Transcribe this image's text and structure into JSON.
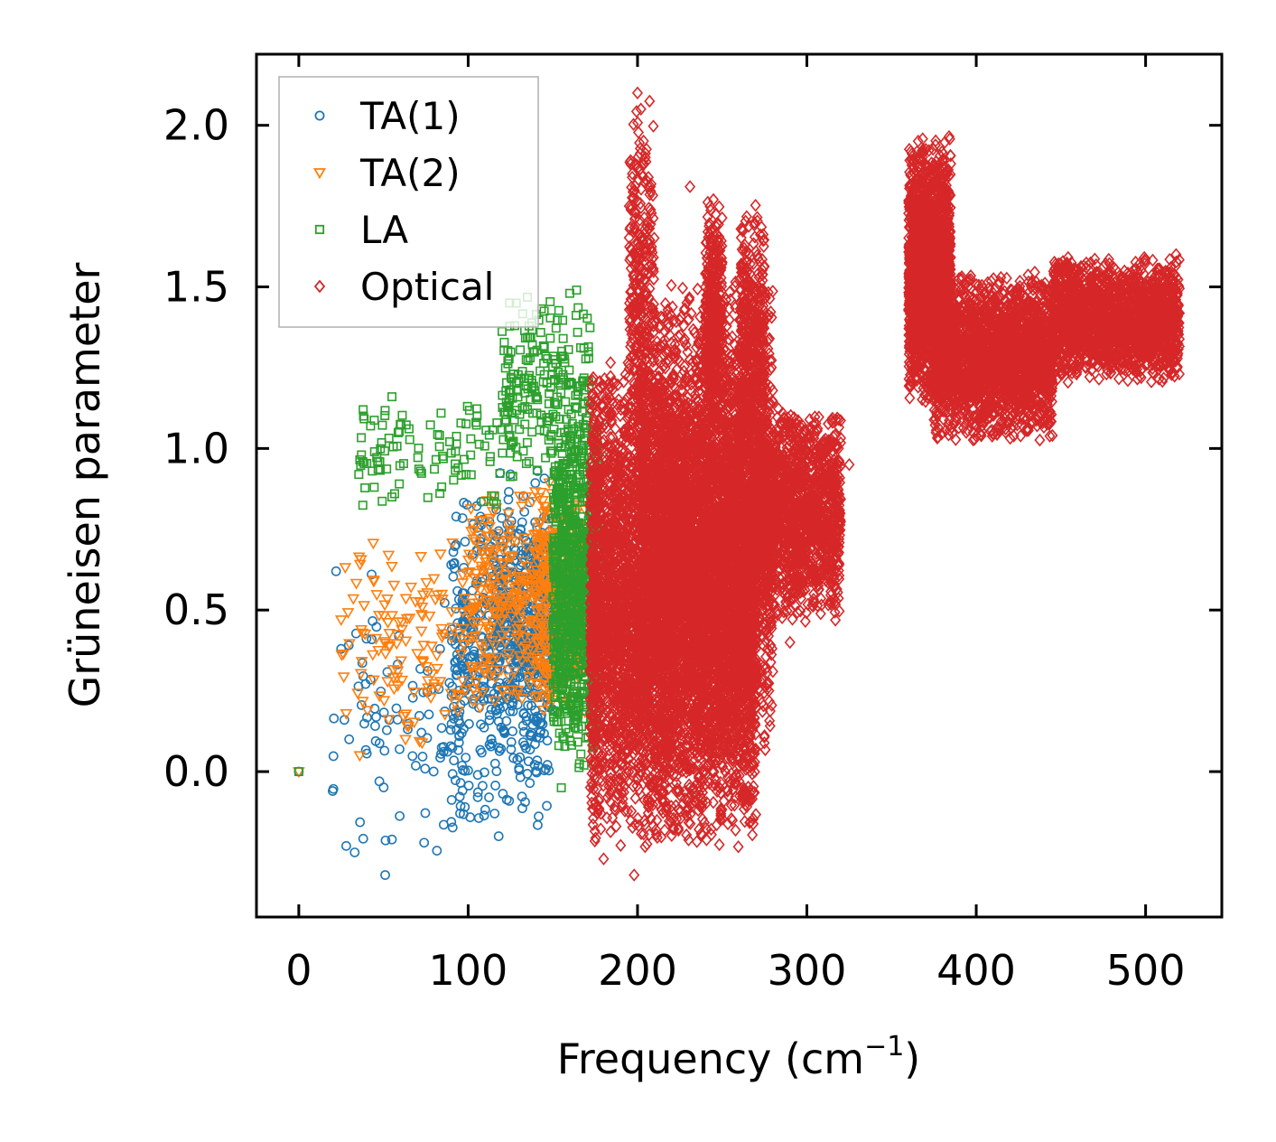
{
  "chart_data": {
    "type": "scatter",
    "title": "",
    "xlabel": "Frequency (cm",
    "xlabel_sup": "−1",
    "xlabel_close": ")",
    "ylabel": "Grüneisen parameter",
    "xlim": [
      -25,
      545
    ],
    "ylim": [
      -0.45,
      2.22
    ],
    "xticks": [
      0,
      100,
      200,
      300,
      400,
      500
    ],
    "xtick_labels": [
      "0",
      "100",
      "200",
      "300",
      "400",
      "500"
    ],
    "yticks": [
      0.0,
      0.5,
      1.0,
      1.5,
      2.0
    ],
    "ytick_labels": [
      "0.0",
      "0.5",
      "1.0",
      "1.5",
      "2.0"
    ],
    "grid": false,
    "legend_position": "top-left",
    "series": [
      {
        "name": "TA(1)",
        "marker": "circle",
        "color": "#1f77b4",
        "clusters": [
          {
            "xmin": 20,
            "xmax": 100,
            "ymin": -0.32,
            "ymax": 0.62,
            "count": 90
          },
          {
            "xmin": 90,
            "xmax": 150,
            "ymin": -0.2,
            "ymax": 0.95,
            "count": 520
          },
          {
            "xmin": 115,
            "xmax": 150,
            "ymin": 0.1,
            "ymax": 0.8,
            "count": 260
          }
        ],
        "points": [
          [
            0,
            0.0
          ],
          [
            20,
            -0.06
          ],
          [
            22,
            0.62
          ],
          [
            25,
            0.38
          ],
          [
            28,
            -0.23
          ],
          [
            33,
            -0.25
          ],
          [
            43,
            0.61
          ],
          [
            51,
            -0.32
          ],
          [
            55,
            -0.21
          ],
          [
            74,
            -0.22
          ],
          [
            90,
            0.64
          ],
          [
            118,
            -0.2
          ],
          [
            125,
            0.92
          ],
          [
            141,
            0.93
          ]
        ]
      },
      {
        "name": "TA(2)",
        "marker": "triangle-down",
        "color": "#ff7f0e",
        "clusters": [
          {
            "xmin": 25,
            "xmax": 100,
            "ymin": 0.05,
            "ymax": 0.75,
            "count": 130
          },
          {
            "xmin": 100,
            "xmax": 165,
            "ymin": 0.15,
            "ymax": 0.9,
            "count": 380
          },
          {
            "xmin": 140,
            "xmax": 172,
            "ymin": 0.15,
            "ymax": 0.95,
            "count": 260
          }
        ],
        "points": [
          [
            0,
            0.0
          ],
          [
            25,
            0.47
          ],
          [
            28,
            0.18
          ],
          [
            36,
            0.05
          ],
          [
            53,
            0.67
          ],
          [
            63,
            0.1
          ],
          [
            103,
            0.72
          ],
          [
            158,
            0.25
          ]
        ]
      },
      {
        "name": "LA",
        "marker": "square",
        "color": "#2ca02c",
        "clusters": [
          {
            "xmin": 35,
            "xmax": 130,
            "ymin": 0.78,
            "ymax": 1.2,
            "count": 110
          },
          {
            "xmin": 120,
            "xmax": 172,
            "ymin": 0.9,
            "ymax": 1.48,
            "count": 220
          },
          {
            "xmin": 150,
            "xmax": 177,
            "ymin": 0.0,
            "ymax": 1.15,
            "count": 900
          }
        ],
        "points": [
          [
            0,
            0.0
          ],
          [
            37,
            0.98
          ],
          [
            38,
            1.12
          ],
          [
            55,
            0.85
          ],
          [
            55,
            1.16
          ],
          [
            160,
            1.48
          ],
          [
            164,
            1.49
          ],
          [
            155,
            -0.05
          ]
        ]
      },
      {
        "name": "Optical",
        "marker": "diamond",
        "color": "#d62728",
        "clusters": [
          {
            "xmin": 172,
            "xmax": 270,
            "ymin": -0.25,
            "ymax": 1.3,
            "count": 6000
          },
          {
            "xmin": 200,
            "xmax": 280,
            "ymin": 0.0,
            "ymax": 1.55,
            "count": 3000
          },
          {
            "xmin": 240,
            "xmax": 250,
            "ymin": 1.0,
            "ymax": 1.78,
            "count": 400
          },
          {
            "xmin": 260,
            "xmax": 275,
            "ymin": 0.9,
            "ymax": 1.78,
            "count": 400
          },
          {
            "xmin": 195,
            "xmax": 210,
            "ymin": 1.0,
            "ymax": 2.1,
            "count": 250
          },
          {
            "xmin": 270,
            "xmax": 320,
            "ymin": 0.45,
            "ymax": 1.15,
            "count": 1500
          },
          {
            "xmin": 360,
            "xmax": 385,
            "ymin": 1.12,
            "ymax": 1.97,
            "count": 1800
          },
          {
            "xmin": 375,
            "xmax": 445,
            "ymin": 1.02,
            "ymax": 1.55,
            "count": 2200
          },
          {
            "xmin": 445,
            "xmax": 520,
            "ymin": 1.2,
            "ymax": 1.6,
            "count": 1800
          }
        ],
        "points": [
          [
            200,
            2.1
          ],
          [
            202,
            2.05
          ],
          [
            231,
            1.81
          ],
          [
            198,
            -0.32
          ],
          [
            325,
            0.95
          ],
          [
            445,
            1.04
          ],
          [
            290,
            0.4
          ],
          [
            180,
            -0.27
          ],
          [
            260,
            -0.03
          ],
          [
            518,
            1.6
          ]
        ]
      }
    ]
  }
}
